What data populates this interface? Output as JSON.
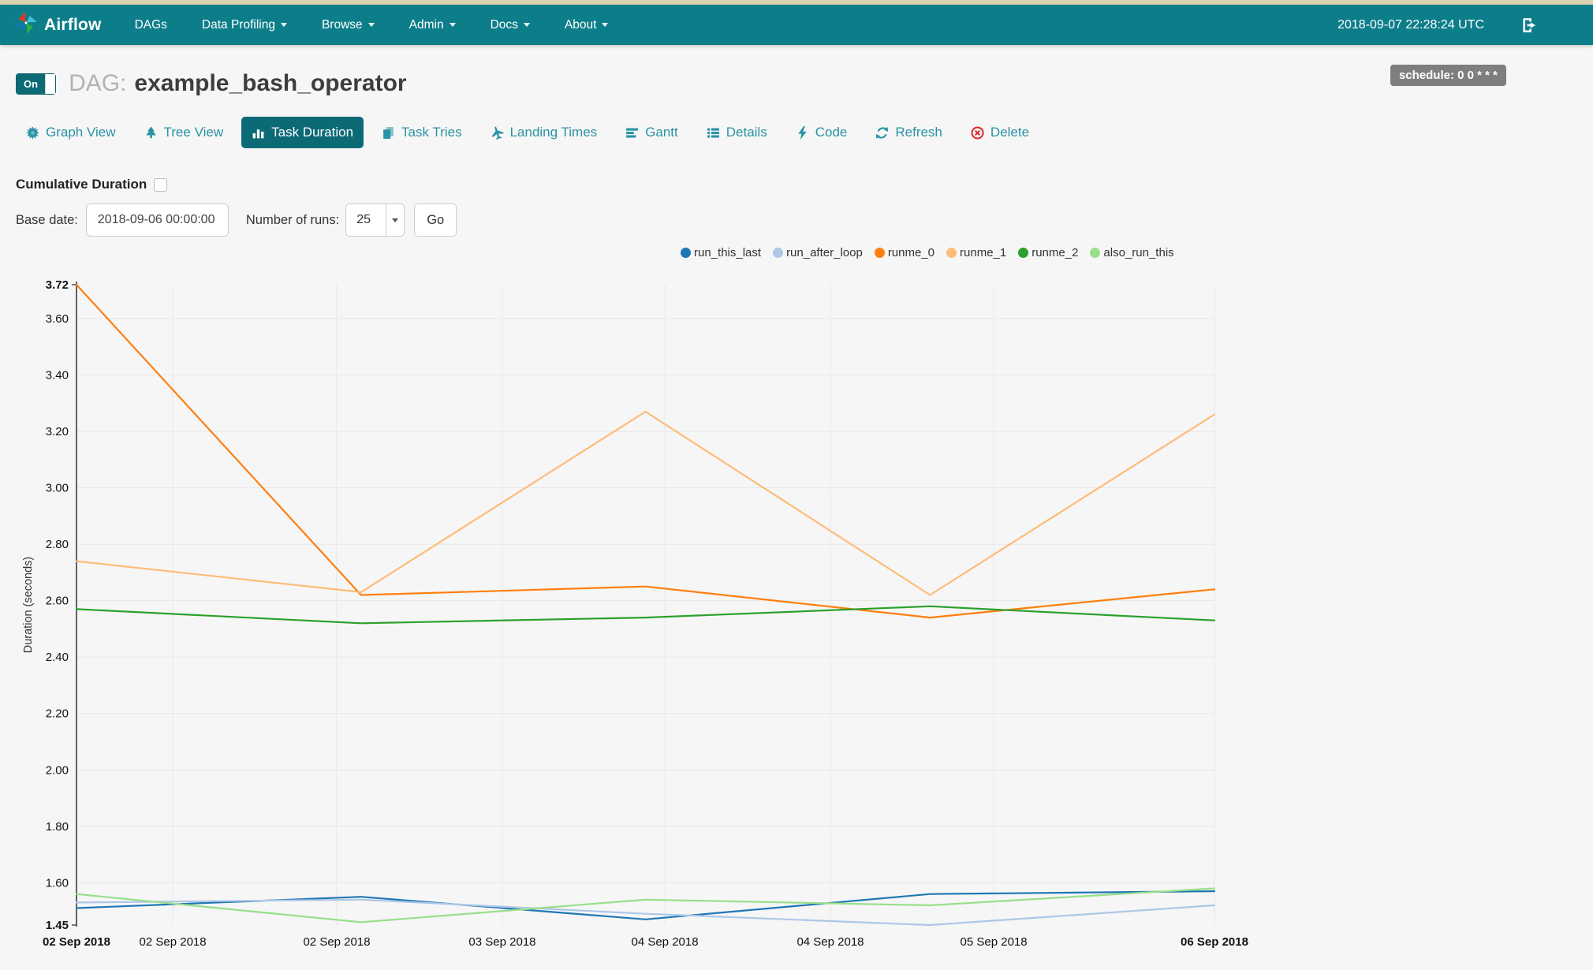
{
  "navbar": {
    "brand": "Airflow",
    "items": [
      {
        "label": "DAGs",
        "caret": false
      },
      {
        "label": "Data Profiling",
        "caret": true
      },
      {
        "label": "Browse",
        "caret": true
      },
      {
        "label": "Admin",
        "caret": true
      },
      {
        "label": "Docs",
        "caret": true
      },
      {
        "label": "About",
        "caret": true
      }
    ],
    "clock": "2018-09-07 22:28:24 UTC"
  },
  "header": {
    "toggle_on": "On",
    "dag_prefix": "DAG:",
    "dag_name": "example_bash_operator",
    "schedule": "schedule: 0 0 * * *"
  },
  "tabs": [
    {
      "label": "Graph View",
      "icon": "graph-icon",
      "active": false,
      "danger": false
    },
    {
      "label": "Tree View",
      "icon": "tree-icon",
      "active": false,
      "danger": false
    },
    {
      "label": "Task Duration",
      "icon": "duration-icon",
      "active": true,
      "danger": false
    },
    {
      "label": "Task Tries",
      "icon": "tries-icon",
      "active": false,
      "danger": false
    },
    {
      "label": "Landing Times",
      "icon": "plane-icon",
      "active": false,
      "danger": false
    },
    {
      "label": "Gantt",
      "icon": "gantt-icon",
      "active": false,
      "danger": false
    },
    {
      "label": "Details",
      "icon": "details-icon",
      "active": false,
      "danger": false
    },
    {
      "label": "Code",
      "icon": "code-icon",
      "active": false,
      "danger": false
    },
    {
      "label": "Refresh",
      "icon": "refresh-icon",
      "active": false,
      "danger": false
    },
    {
      "label": "Delete",
      "icon": "delete-icon",
      "active": false,
      "danger": true
    }
  ],
  "controls": {
    "cumulative_label": "Cumulative Duration",
    "base_date_label": "Base date:",
    "base_date_value": "2018-09-06 00:00:00",
    "num_runs_label": "Number of runs:",
    "num_runs_value": "25",
    "go_label": "Go"
  },
  "chart_data": {
    "type": "line",
    "ylabel": "Duration (seconds)",
    "ylim": [
      1.45,
      3.72
    ],
    "y_ticks": [
      1.45,
      1.6,
      1.8,
      2.0,
      2.2,
      2.4,
      2.6,
      2.8,
      3.0,
      3.2,
      3.4,
      3.6,
      3.72
    ],
    "x_ticks": [
      {
        "label": "02 Sep 2018",
        "pos": 0.0,
        "bold": true
      },
      {
        "label": "02 Sep 2018",
        "pos": 0.0846,
        "bold": false
      },
      {
        "label": "02 Sep 2018",
        "pos": 0.2287,
        "bold": false
      },
      {
        "label": "03 Sep 2018",
        "pos": 0.3742,
        "bold": false
      },
      {
        "label": "04 Sep 2018",
        "pos": 0.517,
        "bold": false
      },
      {
        "label": "04 Sep 2018",
        "pos": 0.6625,
        "bold": false
      },
      {
        "label": "05 Sep 2018",
        "pos": 0.806,
        "bold": false
      },
      {
        "label": "06 Sep 2018",
        "pos": 1.0,
        "bold": true
      }
    ],
    "x_points": [
      0,
      0.25,
      0.5,
      0.75,
      1.0
    ],
    "grid": true,
    "legend_position": "top-right",
    "series": [
      {
        "name": "run_this_last",
        "color": "#1f77b4",
        "values": [
          1.51,
          1.55,
          1.47,
          1.56,
          1.57
        ]
      },
      {
        "name": "run_after_loop",
        "color": "#aec7e8",
        "values": [
          1.53,
          1.54,
          1.49,
          1.45,
          1.52
        ]
      },
      {
        "name": "runme_0",
        "color": "#ff7f0e",
        "values": [
          3.72,
          2.62,
          2.65,
          2.54,
          2.64
        ]
      },
      {
        "name": "runme_1",
        "color": "#ffbb78",
        "values": [
          2.74,
          2.63,
          3.27,
          2.62,
          3.26
        ]
      },
      {
        "name": "runme_2",
        "color": "#2ca02c",
        "values": [
          2.57,
          2.52,
          2.54,
          2.58,
          2.53
        ]
      },
      {
        "name": "also_run_this",
        "color": "#98df8a",
        "values": [
          1.56,
          1.46,
          1.54,
          1.52,
          1.58
        ]
      }
    ]
  }
}
